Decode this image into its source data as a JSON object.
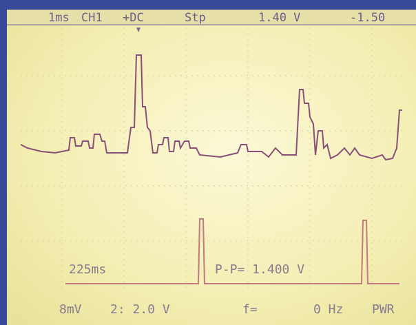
{
  "header": {
    "timebase": "1ms",
    "channel": "CH1",
    "coupling": "+DC",
    "mode": "Stp",
    "level": "1.40 V",
    "offset": "-1.50"
  },
  "readouts": {
    "time": "225ms",
    "peak_to_peak": "P-P= 1.400 V",
    "ch1_scale": "8mV",
    "ch2_scale": "2: 2.0 V",
    "freq_label": "f=",
    "freq": "0 Hz",
    "power": "PWR"
  }
}
